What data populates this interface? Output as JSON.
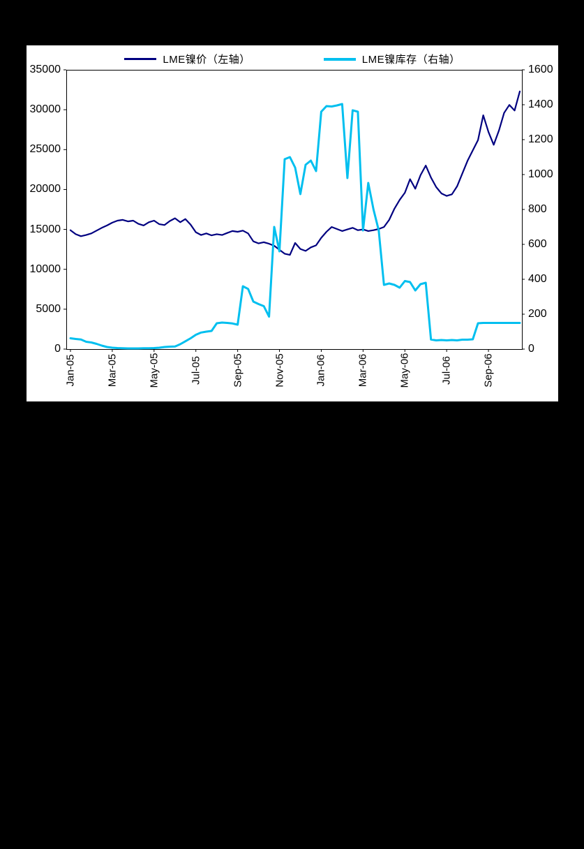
{
  "chart_data": {
    "type": "line",
    "title": "",
    "legend_position": "top",
    "grid": false,
    "plot_background": "#FFFFFF",
    "page_background": "#000000",
    "x_axis": {
      "tick_labels": [
        "Jan-05",
        "Mar-05",
        "May-05",
        "Jul-05",
        "Sep-05",
        "Nov-05",
        "Jan-06",
        "Mar-06",
        "May-06",
        "Jul-06",
        "Sep-06"
      ],
      "tick_months": [
        0,
        2,
        4,
        6,
        8,
        10,
        12,
        14,
        16,
        18,
        20
      ],
      "range_months": [
        0,
        21.5
      ],
      "unit": "months since Jan-2005, weekly samples"
    },
    "y_left": {
      "min": 0,
      "max": 35000,
      "ticks": [
        0,
        5000,
        10000,
        15000,
        20000,
        25000,
        30000,
        35000
      ]
    },
    "y_right": {
      "min": 0,
      "max": 1600,
      "ticks": [
        0,
        200,
        400,
        600,
        800,
        1000,
        1200,
        1400,
        1600
      ]
    },
    "series": [
      {
        "name": "LME镍价（左轴）",
        "axis": "left",
        "color": "#000080",
        "stroke_width": 2.2,
        "x_start": 0,
        "x_step": 0.25,
        "values": [
          14900,
          14400,
          14150,
          14300,
          14500,
          14850,
          15200,
          15500,
          15850,
          16100,
          16200,
          16000,
          16100,
          15700,
          15500,
          15900,
          16100,
          15650,
          15550,
          16050,
          16400,
          15900,
          16300,
          15600,
          14650,
          14300,
          14500,
          14250,
          14400,
          14300,
          14550,
          14800,
          14700,
          14850,
          14500,
          13500,
          13250,
          13400,
          13200,
          12950,
          12450,
          11950,
          11800,
          13300,
          12550,
          12300,
          12750,
          13000,
          13950,
          14700,
          15300,
          15050,
          14800,
          15000,
          15200,
          14900,
          15000,
          14800,
          14900,
          15050,
          15300,
          16200,
          17600,
          18700,
          19600,
          21300,
          20100,
          21800,
          23000,
          21500,
          20300,
          19500,
          19200,
          19400,
          20400,
          22000,
          23600,
          24900,
          26200,
          29300,
          27200,
          25600,
          27400,
          29600,
          30600,
          29900,
          32300
        ]
      },
      {
        "name": "LME镍库存（右轴）",
        "axis": "right",
        "color": "#00BFEF",
        "stroke_width": 3,
        "x_start": 0,
        "x_step": 0.25,
        "values": [
          62,
          58,
          55,
          42,
          38,
          30,
          20,
          12,
          8,
          6,
          5,
          4,
          4,
          4,
          5,
          5,
          6,
          8,
          12,
          14,
          15,
          28,
          45,
          62,
          82,
          95,
          100,
          104,
          148,
          152,
          150,
          147,
          140,
          360,
          345,
          272,
          258,
          246,
          186,
          700,
          560,
          1088,
          1100,
          1040,
          888,
          1056,
          1080,
          1020,
          1360,
          1392,
          1390,
          1396,
          1404,
          980,
          1368,
          1360,
          680,
          952,
          800,
          680,
          368,
          376,
          368,
          352,
          390,
          384,
          336,
          372,
          380,
          55,
          50,
          52,
          50,
          52,
          50,
          54,
          54,
          56,
          148,
          150,
          150,
          150,
          150,
          150,
          150,
          150,
          150
        ]
      }
    ]
  }
}
